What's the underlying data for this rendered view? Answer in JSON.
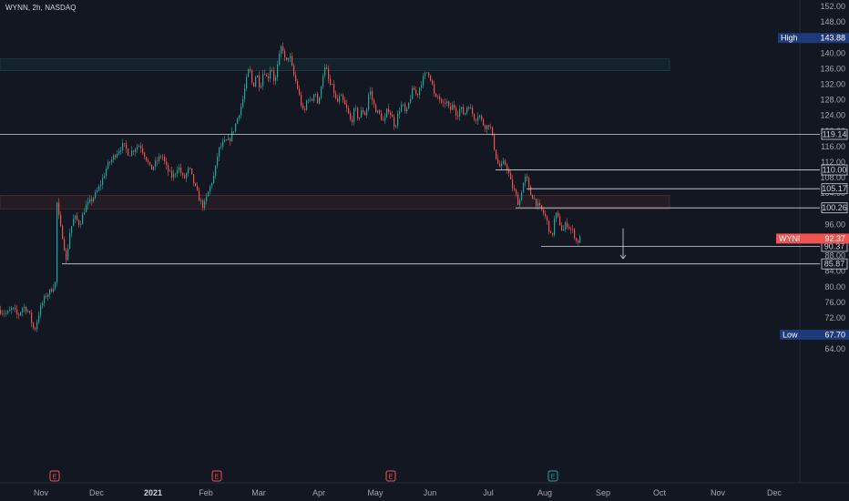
{
  "header": {
    "symbol_line": "WYNN, 2h, NASDAQ"
  },
  "colors": {
    "background": "#131722",
    "up": "#26a69a",
    "down": "#ef5350",
    "level_line": "#d1d4dc",
    "high_low_box": "#1e3a78",
    "last_price_box": "#ef5350"
  },
  "chart_data": {
    "type": "candlestick",
    "title": "",
    "ylim": [
      62,
      154
    ],
    "y_ticks": [
      "152.00",
      "148.00",
      "144.00",
      "140.00",
      "136.00",
      "132.00",
      "128.00",
      "124.00",
      "120.00",
      "116.00",
      "112.00",
      "108.00",
      "104.00",
      "100.00",
      "96.00",
      "92.00",
      "88.00",
      "84.00",
      "80.00",
      "76.00",
      "72.00",
      "68.00",
      "64.00"
    ],
    "x_ticks": [
      {
        "label": "Nov",
        "bold": false
      },
      {
        "label": "Dec",
        "bold": false
      },
      {
        "label": "2021",
        "bold": true
      },
      {
        "label": "Feb",
        "bold": false
      },
      {
        "label": "Mar",
        "bold": false
      },
      {
        "label": "Apr",
        "bold": false
      },
      {
        "label": "May",
        "bold": false
      },
      {
        "label": "Jun",
        "bold": false
      },
      {
        "label": "Jul",
        "bold": false
      },
      {
        "label": "Aug",
        "bold": false
      },
      {
        "label": "Sep",
        "bold": false
      },
      {
        "label": "Oct",
        "bold": false
      },
      {
        "label": "Nov",
        "bold": false
      },
      {
        "label": "Dec",
        "bold": false
      }
    ],
    "price_path": [
      [
        0,
        74.0
      ],
      [
        8,
        73.0
      ],
      [
        14,
        74.5
      ],
      [
        20,
        72.5
      ],
      [
        26,
        75.0
      ],
      [
        32,
        73.5
      ],
      [
        38,
        68.5
      ],
      [
        44,
        74.0
      ],
      [
        50,
        77.5
      ],
      [
        56,
        79.0
      ],
      [
        61,
        81.0
      ],
      [
        63,
        101.5
      ],
      [
        66,
        96.0
      ],
      [
        70,
        92.0
      ],
      [
        73,
        86.5
      ],
      [
        77,
        94.0
      ],
      [
        82,
        98.0
      ],
      [
        88,
        96.0
      ],
      [
        94,
        100.5
      ],
      [
        100,
        102.0
      ],
      [
        106,
        104.0
      ],
      [
        112,
        107.0
      ],
      [
        118,
        111.0
      ],
      [
        124,
        113.0
      ],
      [
        130,
        115.0
      ],
      [
        136,
        116.5
      ],
      [
        142,
        114.0
      ],
      [
        148,
        115.5
      ],
      [
        154,
        116.5
      ],
      [
        160,
        113.5
      ],
      [
        166,
        110.0
      ],
      [
        172,
        112.0
      ],
      [
        178,
        114.0
      ],
      [
        184,
        110.0
      ],
      [
        190,
        108.0
      ],
      [
        196,
        111.0
      ],
      [
        202,
        107.5
      ],
      [
        208,
        110.5
      ],
      [
        214,
        106.0
      ],
      [
        220,
        102.0
      ],
      [
        224,
        100.5
      ],
      [
        230,
        105.0
      ],
      [
        236,
        109.0
      ],
      [
        240,
        115.0
      ],
      [
        246,
        117.0
      ],
      [
        252,
        117.5
      ],
      [
        258,
        121.0
      ],
      [
        262,
        124.0
      ],
      [
        266,
        127.0
      ],
      [
        270,
        132.0
      ],
      [
        274,
        136.5
      ],
      [
        278,
        131.0
      ],
      [
        282,
        135.0
      ],
      [
        286,
        131.0
      ],
      [
        290,
        136.0
      ],
      [
        294,
        133.0
      ],
      [
        298,
        137.0
      ],
      [
        302,
        132.0
      ],
      [
        306,
        138.0
      ],
      [
        310,
        142.5
      ],
      [
        314,
        137.0
      ],
      [
        318,
        140.0
      ],
      [
        322,
        135.0
      ],
      [
        326,
        132.0
      ],
      [
        330,
        128.0
      ],
      [
        334,
        124.0
      ],
      [
        338,
        129.0
      ],
      [
        342,
        127.0
      ],
      [
        346,
        131.0
      ],
      [
        350,
        126.0
      ],
      [
        354,
        134.0
      ],
      [
        358,
        136.5
      ],
      [
        362,
        132.0
      ],
      [
        366,
        131.0
      ],
      [
        370,
        127.0
      ],
      [
        374,
        129.0
      ],
      [
        378,
        127.0
      ],
      [
        382,
        125.0
      ],
      [
        386,
        122.0
      ],
      [
        390,
        126.0
      ],
      [
        394,
        123.0
      ],
      [
        398,
        125.5
      ],
      [
        402,
        124.0
      ],
      [
        406,
        131.0
      ],
      [
        410,
        127.0
      ],
      [
        414,
        125.0
      ],
      [
        418,
        124.0
      ],
      [
        422,
        122.0
      ],
      [
        426,
        126.0
      ],
      [
        430,
        124.0
      ],
      [
        434,
        121.0
      ],
      [
        438,
        125.0
      ],
      [
        442,
        127.0
      ],
      [
        446,
        124.0
      ],
      [
        450,
        128.0
      ],
      [
        454,
        131.0
      ],
      [
        458,
        129.0
      ],
      [
        462,
        132.0
      ],
      [
        466,
        134.0
      ],
      [
        470,
        135.5
      ],
      [
        474,
        133.0
      ],
      [
        478,
        128.0
      ],
      [
        482,
        129.0
      ],
      [
        486,
        126.0
      ],
      [
        490,
        128.0
      ],
      [
        494,
        125.0
      ],
      [
        498,
        127.0
      ],
      [
        502,
        124.0
      ],
      [
        506,
        126.0
      ],
      [
        510,
        124.0
      ],
      [
        514,
        127.0
      ],
      [
        518,
        125.0
      ],
      [
        522,
        123.0
      ],
      [
        526,
        124.5
      ],
      [
        530,
        122.0
      ],
      [
        534,
        121.0
      ],
      [
        538,
        122.0
      ],
      [
        542,
        117.0
      ],
      [
        546,
        112.0
      ],
      [
        550,
        110.5
      ],
      [
        554,
        112.0
      ],
      [
        558,
        110.0
      ],
      [
        562,
        106.0
      ],
      [
        566,
        104.0
      ],
      [
        570,
        101.0
      ],
      [
        574,
        106.0
      ],
      [
        578,
        108.5
      ],
      [
        582,
        104.0
      ],
      [
        586,
        103.0
      ],
      [
        590,
        101.0
      ],
      [
        594,
        100.0
      ],
      [
        598,
        98.5
      ],
      [
        602,
        96.0
      ],
      [
        606,
        92.0
      ],
      [
        610,
        99.0
      ],
      [
        614,
        97.0
      ],
      [
        618,
        94.0
      ],
      [
        622,
        96.5
      ],
      [
        626,
        95.0
      ],
      [
        630,
        94.0
      ],
      [
        634,
        91.0
      ],
      [
        636,
        92.4
      ]
    ],
    "levels": [
      {
        "label": "119.14",
        "value": 119.14,
        "x_start": 0
      },
      {
        "label": "110.00",
        "value": 110.0,
        "x_start": 544
      },
      {
        "label": "105.17",
        "value": 105.17,
        "x_start": 578
      },
      {
        "label": "100.26",
        "value": 100.26,
        "x_start": 566
      },
      {
        "label": "90.37",
        "value": 90.37,
        "x_start": 594
      },
      {
        "label": "85.87",
        "value": 85.87,
        "x_start": 68
      }
    ],
    "zones": [
      {
        "color": "#26a69a",
        "y_from": 135.5,
        "y_to": 138.5,
        "x_end": 735
      },
      {
        "color": "#ef5350",
        "y_from": 100.0,
        "y_to": 103.5,
        "x_end": 735
      }
    ],
    "high": {
      "label": "High",
      "value": "143.88",
      "y": 143.88
    },
    "low": {
      "label": "Low",
      "value": "67.70",
      "y": 67.7
    },
    "last": {
      "label": "WYNN",
      "value": "92.37",
      "y": 92.37
    },
    "earnings_markers": [
      {
        "label": "E",
        "color": "#ef5350"
      },
      {
        "label": "E",
        "color": "#ef5350"
      },
      {
        "label": "E",
        "color": "#ef5350"
      },
      {
        "label": "E",
        "color": "#26a69a"
      }
    ],
    "arrow": {
      "from": 95.0,
      "to": 87.2
    }
  }
}
